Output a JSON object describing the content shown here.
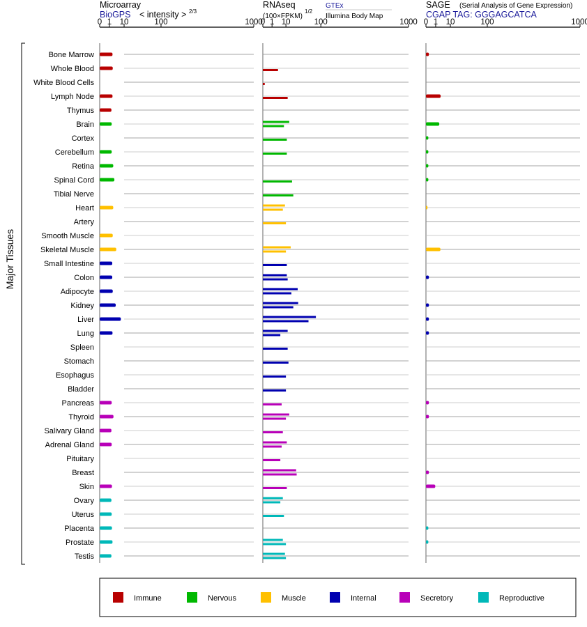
{
  "panels": [
    {
      "id": "microarray",
      "title": "Microarray",
      "subtitle": "BioGPS",
      "scale_note": "< intensity >",
      "scale_exp": "2/3",
      "ticks": [
        "0",
        "1",
        "10",
        "100",
        "1000"
      ]
    },
    {
      "id": "rnaseq",
      "title": "RNAseq",
      "scale_note": "(100×FPKM)",
      "scale_exp": "1/2",
      "source1": "GTEx",
      "source2": "Illumina Body Map",
      "ticks": [
        "0",
        "1",
        "10",
        "100",
        "1000"
      ]
    },
    {
      "id": "sage",
      "title": "SAGE",
      "title_note": "(Serial Analysis of Gene Expression)",
      "subtitle": "CGAP TAG: GGGAGCATCA",
      "ticks": [
        "0",
        "1",
        "10",
        "100",
        "1000"
      ]
    }
  ],
  "y_axis_title": "Major Tissues",
  "colors": {
    "Immune": "#b80000",
    "Nervous": "#00b800",
    "Muscle": "#ffc000",
    "Internal": "#0000b0",
    "Secretory": "#b800b8",
    "Reproductive": "#00b8b8"
  },
  "legend": [
    "Immune",
    "Nervous",
    "Muscle",
    "Internal",
    "Secretory",
    "Reproductive"
  ],
  "chart_data": {
    "type": "bar",
    "x_scale": "power-transformed (0, 1, 10, 100, 1000)",
    "categories": [
      "Bone Marrow",
      "Whole Blood",
      "White Blood Cells",
      "Lymph Node",
      "Thymus",
      "Brain",
      "Cortex",
      "Cerebellum",
      "Retina",
      "Spinal Cord",
      "Tibial Nerve",
      "Heart",
      "Artery",
      "Smooth Muscle",
      "Skeletal Muscle",
      "Small Intestine",
      "Colon",
      "Adipocyte",
      "Kidney",
      "Liver",
      "Lung",
      "Spleen",
      "Stomach",
      "Esophagus",
      "Bladder",
      "Pancreas",
      "Thyroid",
      "Salivary Gland",
      "Adrenal Gland",
      "Pituitary",
      "Breast",
      "Skin",
      "Ovary",
      "Uterus",
      "Placenta",
      "Prostate",
      "Testis"
    ],
    "groups": [
      "Immune",
      "Immune",
      "Immune",
      "Immune",
      "Immune",
      "Nervous",
      "Nervous",
      "Nervous",
      "Nervous",
      "Nervous",
      "Nervous",
      "Muscle",
      "Muscle",
      "Muscle",
      "Muscle",
      "Internal",
      "Internal",
      "Internal",
      "Internal",
      "Internal",
      "Internal",
      "Internal",
      "Internal",
      "Internal",
      "Internal",
      "Secretory",
      "Secretory",
      "Secretory",
      "Secretory",
      "Secretory",
      "Secretory",
      "Secretory",
      "Reproductive",
      "Reproductive",
      "Reproductive",
      "Reproductive",
      "Reproductive"
    ],
    "microarray": [
      2.0,
      2.1,
      null,
      2.0,
      1.6,
      1.7,
      null,
      1.7,
      2.3,
      2.8,
      null,
      2.3,
      null,
      2.1,
      3.8,
      1.9,
      1.9,
      2.1,
      3.5,
      7.0,
      2.0,
      null,
      null,
      null,
      null,
      1.7,
      2.4,
      1.6,
      1.7,
      null,
      null,
      1.8,
      1.6,
      1.7,
      1.8,
      2.0,
      1.6
    ],
    "gtex": [
      null,
      3.5,
      0.02,
      null,
      null,
      14,
      11,
      11,
      null,
      18,
      20,
      9,
      10,
      null,
      16,
      11,
      11,
      28,
      29,
      80,
      12,
      12,
      13,
      10,
      10,
      6,
      14,
      7,
      11,
      5,
      25,
      11,
      7,
      null,
      null,
      7,
      9
    ],
    "illumina": [
      null,
      null,
      null,
      12,
      null,
      8,
      null,
      null,
      null,
      null,
      null,
      7,
      null,
      null,
      10,
      null,
      12,
      17,
      20,
      55,
      5,
      null,
      null,
      null,
      null,
      null,
      10,
      null,
      6,
      null,
      26,
      null,
      5,
      8,
      null,
      10,
      10
    ],
    "sage": [
      0.05,
      null,
      null,
      2.8,
      null,
      2.2,
      0.03,
      0.03,
      0.03,
      0.03,
      null,
      0.01,
      null,
      null,
      2.7,
      null,
      0.05,
      null,
      0.05,
      0.05,
      0.05,
      null,
      null,
      null,
      null,
      0.05,
      0.05,
      null,
      null,
      null,
      0.05,
      0.9,
      null,
      null,
      0.03,
      0.03,
      null
    ]
  }
}
